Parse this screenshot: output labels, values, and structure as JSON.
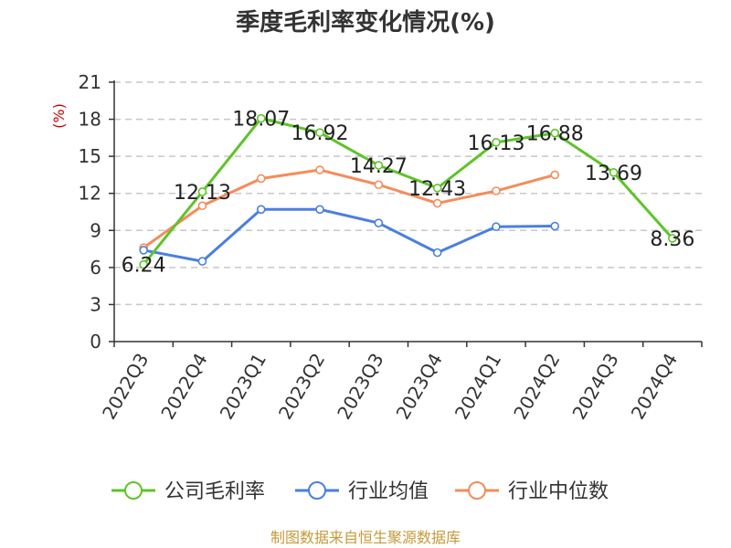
{
  "chart_data": {
    "type": "line",
    "title": "季度毛利率变化情况(%)",
    "ylabel": "(%)",
    "ylim": [
      0,
      21
    ],
    "yticks": [
      0,
      3,
      6,
      9,
      12,
      15,
      18,
      21
    ],
    "grid": true,
    "legend": "bottom",
    "categories": [
      "2022Q3",
      "2022Q4",
      "2023Q1",
      "2023Q2",
      "2023Q3",
      "2023Q4",
      "2024Q1",
      "2024Q2",
      "2024Q3",
      "2024Q4"
    ],
    "series": [
      {
        "name": "公司毛利率",
        "color": "#5ec428",
        "values": [
          6.24,
          12.13,
          18.07,
          16.92,
          14.27,
          12.43,
          16.13,
          16.88,
          13.69,
          8.36
        ],
        "labels": [
          "6.24",
          "12.13",
          "18.07",
          "16.92",
          "14.27",
          "12.43",
          "16.13",
          "16.88",
          "13.69",
          "8.36"
        ]
      },
      {
        "name": "行业均值",
        "color": "#4a7fe0",
        "values": [
          7.4,
          6.5,
          10.7,
          10.7,
          9.6,
          7.2,
          9.3,
          9.35,
          null,
          null
        ]
      },
      {
        "name": "行业中位数",
        "color": "#f48c5a",
        "values": [
          7.6,
          11.0,
          13.2,
          13.9,
          12.7,
          11.2,
          12.2,
          13.5,
          null,
          null
        ]
      }
    ]
  },
  "footer": {
    "source": "制图数据来自恒生聚源数据库"
  }
}
